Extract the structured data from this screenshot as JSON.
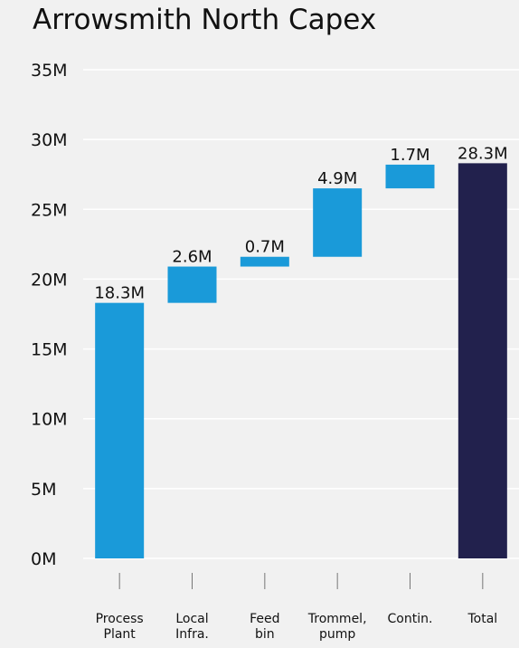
{
  "chart_data": {
    "type": "waterfall",
    "title": "Arrowsmith North Capex",
    "xlabel": "",
    "ylabel": "",
    "ylim": [
      0,
      35
    ],
    "y_ticks": [
      "0M",
      "5M",
      "10M",
      "15M",
      "20M",
      "25M",
      "30M",
      "35M"
    ],
    "grid": true,
    "categories": [
      [
        "Process",
        "Plant"
      ],
      [
        "Local",
        "Infra."
      ],
      [
        "Feed",
        "bin"
      ],
      [
        "Trommel,",
        "pump"
      ],
      [
        "Contin."
      ],
      [
        "Total"
      ]
    ],
    "values": [
      18.3,
      2.6,
      0.7,
      4.9,
      1.7,
      28.3
    ],
    "is_total": [
      false,
      false,
      false,
      false,
      false,
      true
    ],
    "data_labels": [
      "18.3M",
      "2.6M",
      "0.7M",
      "4.9M",
      "1.7M",
      "28.3M"
    ],
    "colors": {
      "increase": "#1a9ad9",
      "total": "#22214d",
      "grid": "#ffffff",
      "text": "#111111",
      "tick": "#777777"
    }
  }
}
